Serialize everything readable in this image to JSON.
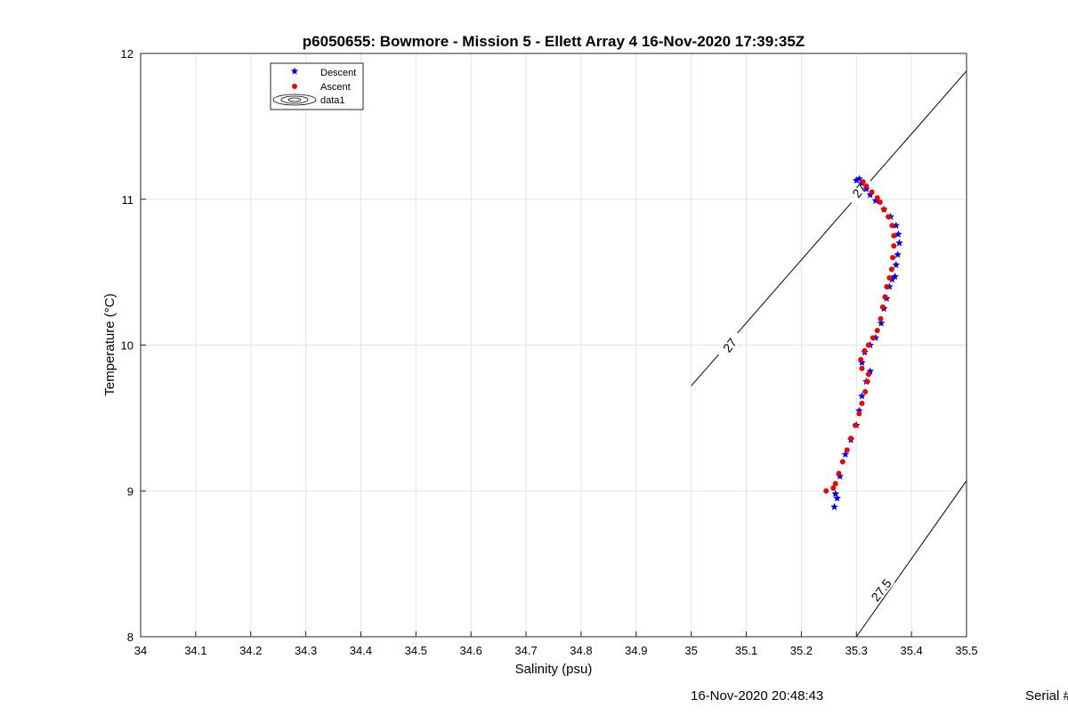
{
  "chart_data": {
    "type": "scatter",
    "title": "p6050655: Bowmore - Mission 5 - Ellett Array 4 16-Nov-2020 17:39:35Z",
    "xlabel": "Salinity (psu)",
    "ylabel": "Temperature (°C)",
    "xlim": [
      34,
      35.5
    ],
    "ylim": [
      8,
      12
    ],
    "xticks": [
      "34",
      "34.1",
      "34.2",
      "34.3",
      "34.4",
      "34.5",
      "34.6",
      "34.7",
      "34.8",
      "34.9",
      "35",
      "35.1",
      "35.2",
      "35.3",
      "35.4",
      "35.5"
    ],
    "yticks": [
      "8",
      "9",
      "10",
      "11",
      "12"
    ],
    "grid": true,
    "legend_position": "top-left",
    "legend": [
      "Descent",
      "Ascent",
      "data1"
    ],
    "series": [
      {
        "name": "Descent",
        "color": "#0000ee",
        "marker": "pentagram",
        "points": [
          [
            35.26,
            8.89
          ],
          [
            35.265,
            8.95
          ],
          [
            35.262,
            8.98
          ],
          [
            35.27,
            9.1
          ],
          [
            35.28,
            9.25
          ],
          [
            35.29,
            9.35
          ],
          [
            35.3,
            9.45
          ],
          [
            35.305,
            9.55
          ],
          [
            35.31,
            9.65
          ],
          [
            35.318,
            9.75
          ],
          [
            35.325,
            9.82
          ],
          [
            35.31,
            9.88
          ],
          [
            35.315,
            9.95
          ],
          [
            35.325,
            10.0
          ],
          [
            35.335,
            10.05
          ],
          [
            35.345,
            10.15
          ],
          [
            35.35,
            10.25
          ],
          [
            35.355,
            10.32
          ],
          [
            35.36,
            10.4
          ],
          [
            35.365,
            10.45
          ],
          [
            35.37,
            10.47
          ],
          [
            35.372,
            10.55
          ],
          [
            35.375,
            10.62
          ],
          [
            35.378,
            10.7
          ],
          [
            35.376,
            10.76
          ],
          [
            35.372,
            10.82
          ],
          [
            35.362,
            10.88
          ],
          [
            35.35,
            10.93
          ],
          [
            35.335,
            10.99
          ],
          [
            35.325,
            11.03
          ],
          [
            35.318,
            11.07
          ],
          [
            35.31,
            11.11
          ],
          [
            35.305,
            11.14
          ],
          [
            35.3,
            11.13
          ]
        ]
      },
      {
        "name": "Ascent",
        "color": "#ee0000",
        "marker": "circle",
        "points": [
          [
            35.245,
            9.0
          ],
          [
            35.258,
            9.02
          ],
          [
            35.262,
            9.05
          ],
          [
            35.268,
            9.12
          ],
          [
            35.275,
            9.2
          ],
          [
            35.283,
            9.28
          ],
          [
            35.29,
            9.36
          ],
          [
            35.298,
            9.45
          ],
          [
            35.305,
            9.53
          ],
          [
            35.31,
            9.6
          ],
          [
            35.316,
            9.68
          ],
          [
            35.32,
            9.75
          ],
          [
            35.322,
            9.8
          ],
          [
            35.31,
            9.84
          ],
          [
            35.308,
            9.9
          ],
          [
            35.315,
            9.96
          ],
          [
            35.322,
            10.0
          ],
          [
            35.33,
            10.05
          ],
          [
            35.338,
            10.1
          ],
          [
            35.344,
            10.18
          ],
          [
            35.348,
            10.26
          ],
          [
            35.352,
            10.33
          ],
          [
            35.355,
            10.4
          ],
          [
            35.36,
            10.46
          ],
          [
            35.364,
            10.52
          ],
          [
            35.366,
            10.6
          ],
          [
            35.368,
            10.68
          ],
          [
            35.368,
            10.75
          ],
          [
            35.365,
            10.82
          ],
          [
            35.358,
            10.88
          ],
          [
            35.35,
            10.93
          ],
          [
            35.343,
            10.98
          ],
          [
            35.338,
            11.01
          ],
          [
            35.328,
            11.05
          ],
          [
            35.318,
            11.09
          ],
          [
            35.312,
            11.12
          ]
        ]
      }
    ],
    "contours": [
      {
        "label": "27",
        "points": [
          [
            35.0,
            9.72
          ],
          [
            35.5,
            11.88
          ]
        ],
        "label_at": [
          35.07,
          10.0
        ]
      },
      {
        "label": "27",
        "points": [],
        "label_at": [
          35.305,
          11.06
        ]
      },
      {
        "label": "27.5",
        "points": [
          [
            35.3,
            8.0
          ],
          [
            35.5,
            9.07
          ]
        ],
        "label_at": [
          35.345,
          8.32
        ]
      }
    ]
  },
  "footer": {
    "timestamp": "16-Nov-2020 20:48:43",
    "serial": "Serial #"
  }
}
